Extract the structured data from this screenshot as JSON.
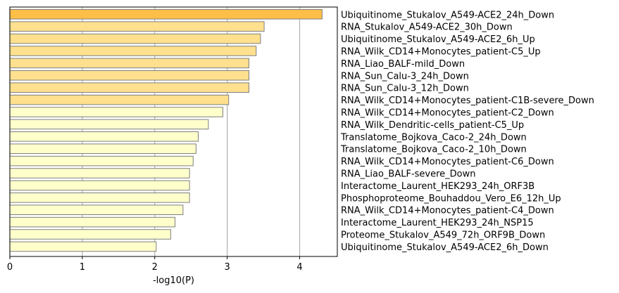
{
  "chart_data": {
    "type": "bar",
    "orientation": "horizontal",
    "categories": [
      "Ubiquitinome_Stukalov_A549-ACE2_24h_Down",
      "RNA_Stukalov_A549-ACE2_30h_Down",
      "Ubiquitinome_Stukalov_A549-ACE2_6h_Up",
      "RNA_Wilk_CD14+Monocytes_patient-C5_Up",
      "RNA_Liao_BALF-mild_Down",
      "RNA_Sun_Calu-3_24h_Down",
      "RNA_Sun_Calu-3_12h_Down",
      "RNA_Wilk_CD14+Monocytes_patient-C1B-severe_Down",
      "RNA_Wilk_CD14+Monocytes_patient-C2_Down",
      "RNA_Wilk_Dendritic-cells_patient-C5_Up",
      "Translatome_Bojkova_Caco-2_24h_Down",
      "Translatome_Bojkova_Caco-2_10h_Down",
      "RNA_Wilk_CD14+Monocytes_patient-C6_Down",
      "RNA_Liao_BALF-severe_Down",
      "Interactome_Laurent_HEK293_24h_ORF3B",
      "Phosphoproteome_Bouhaddou_Vero_E6_12h_Up",
      "RNA_Wilk_CD14+Monocytes_patient-C4_Down",
      "Interactome_Laurent_HEK293_24h_NSP15",
      "Proteome_Stukalov_A549_72h_ORF9B_Down",
      "Ubiquitinome_Stukalov_A549-ACE2_6h_Down"
    ],
    "values": [
      4.31,
      3.51,
      3.46,
      3.4,
      3.3,
      3.3,
      3.3,
      3.02,
      2.94,
      2.74,
      2.6,
      2.57,
      2.53,
      2.48,
      2.48,
      2.48,
      2.39,
      2.28,
      2.22,
      2.02
    ],
    "bar_colors": [
      "#fdbf47",
      "#fee08e",
      "#fee08e",
      "#fee08e",
      "#fee08e",
      "#fee08e",
      "#fee08e",
      "#fee08e",
      "#ffffcc",
      "#ffffcc",
      "#ffffcc",
      "#ffffcc",
      "#ffffcc",
      "#ffffcc",
      "#ffffcc",
      "#ffffcc",
      "#ffffcc",
      "#ffffcc",
      "#ffffcc",
      "#ffffcc"
    ],
    "bar_edge_color": "#7f7f7f",
    "title": "",
    "xlabel": "-log10(P)",
    "ylabel": "",
    "xlim": [
      0,
      4.52
    ],
    "xticks": [
      0,
      1,
      2,
      3,
      4
    ],
    "xtick_labels": [
      "0",
      "1",
      "2",
      "3",
      "4"
    ],
    "grid": "vertical lines at x ticks",
    "grid_color": "#b0b0b0",
    "category_labels_side": "right",
    "legend": "none"
  }
}
